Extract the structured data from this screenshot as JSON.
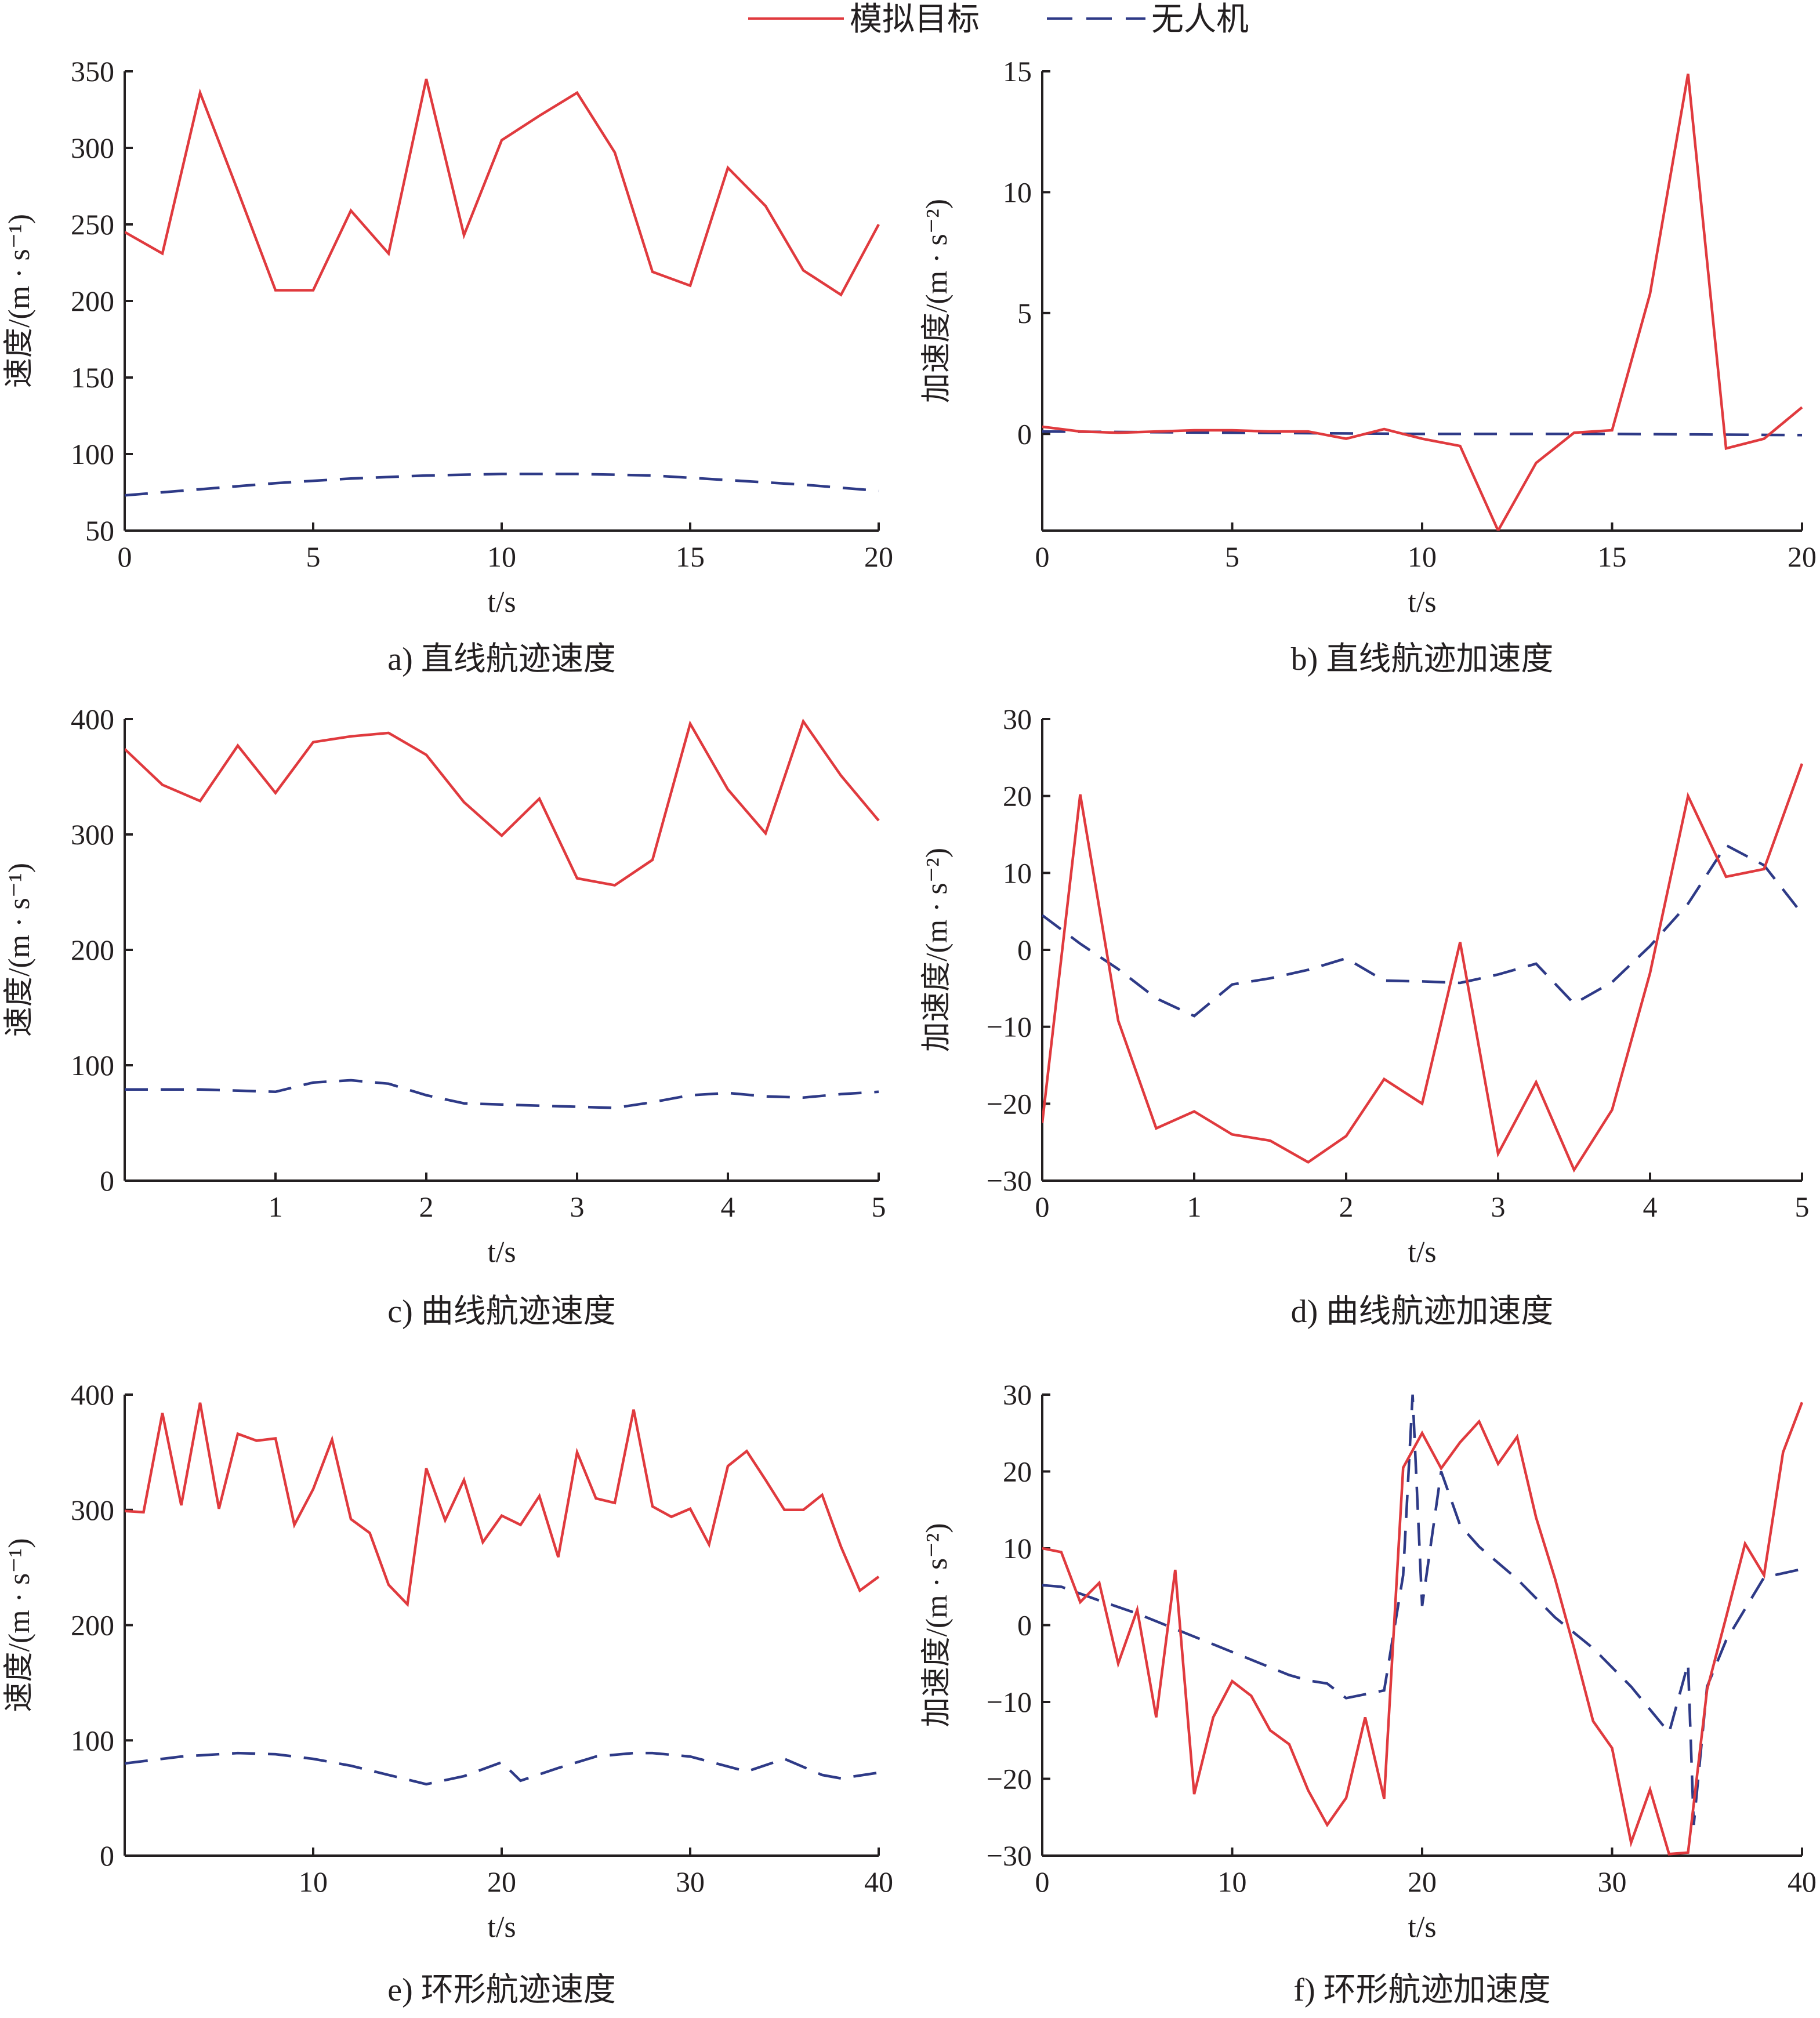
{
  "legend": {
    "target_label": "模拟目标",
    "uav_label": "无人机"
  },
  "colors": {
    "target": "#e03a3e",
    "uav": "#2e3a87",
    "axis": "#231f20"
  },
  "chart_data": [
    {
      "id": "a",
      "type": "line",
      "caption": "a) 直线航迹速度",
      "xlabel": "t/s",
      "ylabel": "速度/(m · s⁻¹)",
      "xlim": [
        0,
        20
      ],
      "ylim": [
        50,
        350
      ],
      "xticks": [
        0,
        5,
        10,
        15,
        20
      ],
      "yticks": [
        50,
        100,
        150,
        200,
        250,
        300,
        350
      ],
      "series": [
        {
          "name": "模拟目标",
          "style": "solid",
          "x": [
            0,
            1,
            2,
            3,
            4,
            5,
            6,
            7,
            8,
            9,
            10,
            11,
            12,
            13,
            14,
            15,
            16,
            17,
            18,
            19,
            20
          ],
          "y": [
            245,
            231,
            336,
            272,
            207,
            207,
            259,
            231,
            345,
            243,
            305,
            321,
            336,
            297,
            219,
            210,
            287,
            262,
            220,
            204,
            250
          ]
        },
        {
          "name": "无人机",
          "style": "dashed",
          "x": [
            0,
            2,
            4,
            6,
            8,
            10,
            12,
            14,
            16,
            18,
            20
          ],
          "y": [
            73,
            77,
            81,
            84,
            86,
            87,
            87,
            86,
            83,
            80,
            76
          ]
        }
      ]
    },
    {
      "id": "b",
      "type": "line",
      "caption": "b) 直线航迹加速度",
      "xlabel": "t/s",
      "ylabel": "加速度/(m · s⁻²)",
      "xlim": [
        0,
        20
      ],
      "ylim": [
        -4,
        15
      ],
      "xticks": [
        0,
        5,
        10,
        15,
        20
      ],
      "yticks": [
        0,
        5,
        10,
        15
      ],
      "series": [
        {
          "name": "模拟目标",
          "style": "solid",
          "x": [
            0,
            1,
            2,
            3,
            4,
            5,
            6,
            7,
            8,
            9,
            10,
            11,
            12,
            13,
            14,
            15,
            16,
            17,
            18,
            19,
            20
          ],
          "y": [
            0.3,
            0.1,
            0.05,
            0.1,
            0.15,
            0.15,
            0.1,
            0.1,
            -0.2,
            0.2,
            -0.2,
            -0.5,
            -4.0,
            -1.2,
            0.05,
            0.15,
            5.8,
            14.9,
            -0.6,
            -0.2,
            1.1
          ]
        },
        {
          "name": "无人机",
          "style": "dashed",
          "x": [
            0,
            5,
            10,
            15,
            20
          ],
          "y": [
            0.1,
            0.05,
            0.0,
            0.0,
            -0.05
          ]
        }
      ]
    },
    {
      "id": "c",
      "type": "line",
      "caption": "c) 曲线航迹速度",
      "xlabel": "t/s",
      "ylabel": "速度/(m · s⁻¹)",
      "xlim": [
        0,
        5
      ],
      "ylim": [
        0,
        400
      ],
      "xticks": [
        1,
        2,
        3,
        4,
        5
      ],
      "yticks": [
        0,
        100,
        200,
        300,
        400
      ],
      "series": [
        {
          "name": "模拟目标",
          "style": "solid",
          "x": [
            0,
            0.25,
            0.5,
            0.75,
            1,
            1.25,
            1.5,
            1.75,
            2,
            2.25,
            2.5,
            2.75,
            3,
            3.25,
            3.5,
            3.75,
            4,
            4.25,
            4.5,
            4.75,
            5
          ],
          "y": [
            374,
            343,
            329,
            377,
            336,
            380,
            385,
            388,
            369,
            328,
            299,
            331,
            262,
            256,
            278,
            396,
            339,
            301,
            398,
            351,
            312
          ]
        },
        {
          "name": "无人机",
          "style": "dashed",
          "x": [
            0,
            0.25,
            0.5,
            0.75,
            1,
            1.25,
            1.5,
            1.75,
            2,
            2.25,
            2.5,
            2.75,
            3,
            3.25,
            3.5,
            3.75,
            4,
            4.25,
            4.5,
            4.75,
            5
          ],
          "y": [
            79,
            79,
            79,
            78,
            77,
            85,
            87,
            84,
            74,
            67,
            66,
            65,
            64,
            63,
            68,
            74,
            76,
            73,
            72,
            75,
            77
          ]
        }
      ]
    },
    {
      "id": "d",
      "type": "line",
      "caption": "d) 曲线航迹加速度",
      "xlabel": "t/s",
      "ylabel": "加速度/(m · s⁻²)",
      "xlim": [
        0,
        5
      ],
      "ylim": [
        -30,
        30
      ],
      "xticks": [
        0,
        1,
        2,
        3,
        4,
        5
      ],
      "yticks": [
        -30,
        -20,
        -10,
        0,
        10,
        20,
        30
      ],
      "series": [
        {
          "name": "模拟目标",
          "style": "solid",
          "x": [
            0,
            0.25,
            0.5,
            0.75,
            1,
            1.25,
            1.5,
            1.75,
            2,
            2.25,
            2.5,
            2.75,
            3,
            3.25,
            3.5,
            3.75,
            4,
            4.25,
            4.5,
            4.75,
            5
          ],
          "y": [
            -22.5,
            20.2,
            -9.2,
            -23.2,
            -21.0,
            -24.0,
            -24.8,
            -27.6,
            -24.2,
            -16.8,
            -20.0,
            1.0,
            -26.5,
            -17.2,
            -28.6,
            -20.8,
            -3.0,
            20.0,
            9.5,
            10.5,
            24.2
          ]
        },
        {
          "name": "无人机",
          "style": "dashed",
          "x": [
            0,
            0.25,
            0.5,
            0.75,
            1,
            1.25,
            1.5,
            1.75,
            2,
            2.25,
            2.5,
            2.75,
            3,
            3.25,
            3.5,
            3.75,
            4,
            4.25,
            4.5,
            4.75,
            5
          ],
          "y": [
            4.5,
            0.8,
            -2.5,
            -6.3,
            -8.6,
            -4.5,
            -3.7,
            -2.6,
            -1.1,
            -4.0,
            -4.1,
            -4.3,
            -3.2,
            -1.8,
            -7.0,
            -4.2,
            0.5,
            6.0,
            13.6,
            11.0,
            4.7
          ]
        }
      ]
    },
    {
      "id": "e",
      "type": "line",
      "caption": "e) 环形航迹速度",
      "xlabel": "t/s",
      "ylabel": "速度/(m · s⁻¹)",
      "xlim": [
        0,
        40
      ],
      "ylim": [
        0,
        400
      ],
      "xticks": [
        10,
        20,
        30,
        40
      ],
      "yticks": [
        0,
        100,
        200,
        300,
        400
      ],
      "series": [
        {
          "name": "模拟目标",
          "style": "solid",
          "x": [
            0,
            1,
            2,
            3,
            4,
            5,
            6,
            7,
            8,
            9,
            10,
            11,
            12,
            13,
            14,
            15,
            16,
            17,
            18,
            19,
            20,
            21,
            22,
            23,
            24,
            25,
            26,
            27,
            28,
            29,
            30,
            31,
            32,
            33,
            34,
            35,
            36,
            37,
            38,
            39,
            40
          ],
          "y": [
            299,
            298,
            384,
            304,
            393,
            301,
            366,
            360,
            362,
            287,
            318,
            361,
            292,
            280,
            235,
            218,
            336,
            291,
            326,
            272,
            295,
            287,
            312,
            259,
            350,
            310,
            306,
            387,
            303,
            294,
            301,
            270,
            338,
            351,
            326,
            300,
            300,
            313,
            268,
            230,
            242
          ]
        },
        {
          "name": "无人机",
          "style": "dashed",
          "x": [
            0,
            3,
            6,
            8,
            10,
            12,
            14,
            16,
            18,
            20,
            21,
            23,
            25,
            27,
            28,
            30,
            33,
            35,
            37,
            38,
            40
          ],
          "y": [
            80,
            86,
            89,
            88,
            84,
            78,
            70,
            62,
            69,
            81,
            65,
            76,
            86,
            89,
            89,
            86,
            73,
            84,
            70,
            67,
            72
          ]
        }
      ]
    },
    {
      "id": "f",
      "type": "line",
      "caption": "f) 环形航迹加速度",
      "xlabel": "t/s",
      "ylabel": "加速度/(m · s⁻²)",
      "xlim": [
        0,
        40
      ],
      "ylim": [
        -30,
        30
      ],
      "xticks": [
        0,
        10,
        20,
        30,
        40
      ],
      "yticks": [
        -30,
        -20,
        -10,
        0,
        10,
        20,
        30
      ],
      "series": [
        {
          "name": "模拟目标",
          "style": "solid",
          "x": [
            0,
            1,
            2,
            3,
            4,
            5,
            6,
            7,
            8,
            9,
            10,
            11,
            12,
            13,
            14,
            15,
            16,
            17,
            18,
            19,
            20,
            21,
            22,
            23,
            24,
            25,
            26,
            27,
            28,
            29,
            30,
            31,
            32,
            33,
            34,
            35,
            36,
            37,
            38,
            39,
            40
          ],
          "y": [
            10,
            9.5,
            3,
            5.5,
            -5,
            2,
            -12,
            7.2,
            -22,
            -12,
            -7.3,
            -9.2,
            -13.7,
            -15.5,
            -21.5,
            -26,
            -22.5,
            -12,
            -22.6,
            20.5,
            25,
            20.4,
            23.8,
            26.5,
            21,
            24.5,
            14,
            6,
            -3,
            -12.5,
            -16,
            -28.3,
            -21.4,
            -29.8,
            -29.6,
            -8.4,
            1,
            10.6,
            6.5,
            22.5,
            29
          ]
        },
        {
          "name": "无人机",
          "style": "dashed",
          "x": [
            0,
            1,
            3,
            5,
            7,
            9,
            11,
            13,
            14,
            15,
            16,
            18,
            19,
            19.5,
            20,
            21,
            22,
            23,
            25,
            27,
            29,
            31,
            33,
            34,
            34.3,
            35,
            36,
            38,
            40
          ],
          "y": [
            5.2,
            5.0,
            3.2,
            1.5,
            -0.5,
            -2.5,
            -4.5,
            -6.5,
            -7.2,
            -7.6,
            -9.5,
            -8.5,
            6.5,
            30,
            2.5,
            20,
            13,
            10.2,
            6,
            1,
            -3,
            -8,
            -14,
            -5,
            -26,
            -8,
            -2,
            6.2,
            7.3
          ]
        }
      ]
    }
  ]
}
